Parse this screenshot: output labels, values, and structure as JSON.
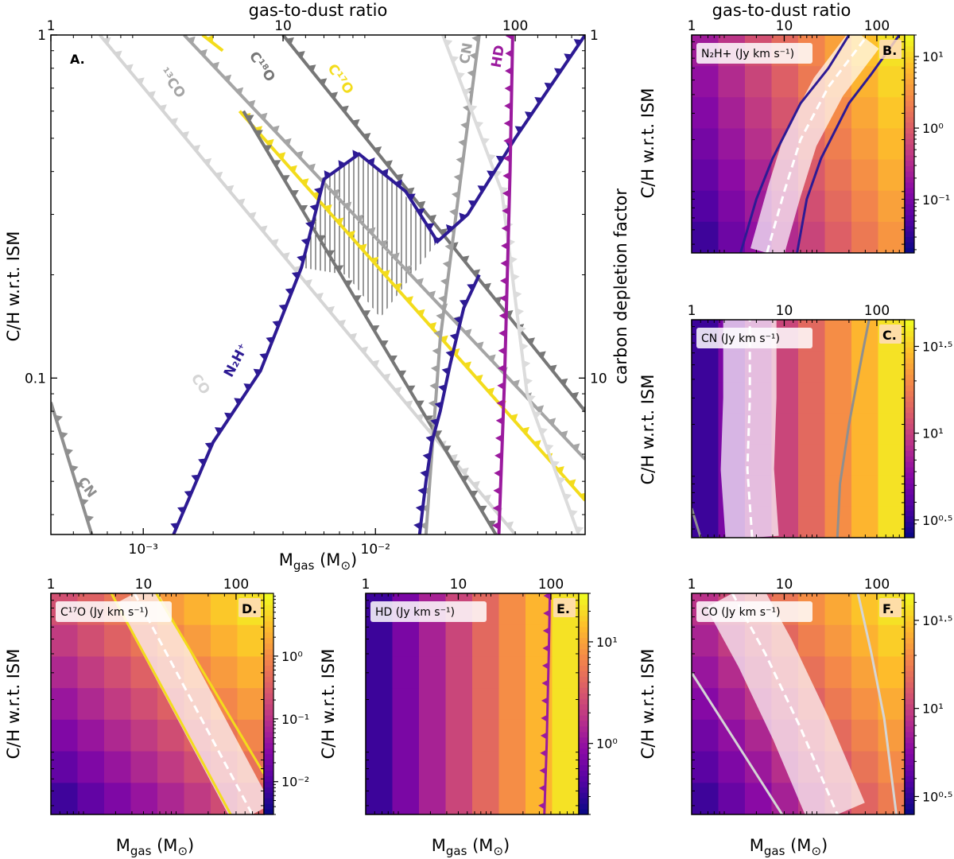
{
  "figure": {
    "top_axis_label": "gas-to-dust ratio",
    "bottom_axis_label": "Mgas (M⊙)",
    "left_axis_label": "C/H w.r.t. ISM",
    "right_axis_label": "carbon depletion factor"
  },
  "chart_data": [
    {
      "id": "A",
      "type": "line",
      "title": "A.",
      "xlabel": "Mgas (M⊙)",
      "ylabel": "C/H w.r.t. ISM",
      "top_xlabel": "gas-to-dust ratio",
      "right_ylabel": "carbon depletion factor",
      "xscale": "log",
      "yscale": "log",
      "xlim": [
        0.0004,
        0.08
      ],
      "ylim": [
        0.035,
        1.0
      ],
      "xticks": [
        {
          "v": 0.001,
          "label": "10⁻³"
        },
        {
          "v": 0.01,
          "label": "10⁻²"
        }
      ],
      "yticks": [
        {
          "v": 1,
          "label": "1"
        },
        {
          "v": 0.1,
          "label": "0.1"
        }
      ],
      "top_ticks": [
        {
          "v": 1,
          "label": "1"
        },
        {
          "v": 10,
          "label": "10"
        },
        {
          "v": 100,
          "label": "100"
        }
      ],
      "right_ticks": [
        {
          "v": 1,
          "label": "1"
        },
        {
          "v": 10,
          "label": "10"
        }
      ],
      "series": [
        {
          "name": "13CO",
          "label": "¹³CO",
          "color": "#a5a5a5",
          "points": [
            [
              0.0015,
              1.0
            ],
            [
              0.08,
              0.058
            ]
          ],
          "label_at": [
            0.00117,
            0.78
          ]
        },
        {
          "name": "CO",
          "label": "CO",
          "color": "#d5d5d5",
          "points": [
            [
              0.00065,
              1.0
            ],
            [
              0.04,
              0.035
            ]
          ],
          "label_at": [
            0.0016,
            0.1
          ]
        },
        {
          "name": "C18O",
          "label": "C¹⁸O",
          "color": "#777777",
          "points": [
            [
              0.004,
              1.0
            ],
            [
              0.08,
              0.08
            ]
          ],
          "label_at": [
            0.00285,
            0.87
          ]
        },
        {
          "name": "C17O",
          "label": "C¹⁷O",
          "color": "#f3dc1c",
          "points": [
            [
              0.0026,
              0.6
            ],
            [
              0.08,
              0.044
            ]
          ],
          "label_at": [
            0.0062,
            0.8
          ]
        },
        {
          "name": "C18O-upper",
          "label": "",
          "color": "#777777",
          "points": [
            [
              0.0027,
              0.6
            ],
            [
              0.033,
              0.035
            ]
          ]
        },
        {
          "name": "C17O-upper",
          "label": "",
          "color": "#f3dc1c",
          "points": [
            [
              0.0018,
              1.0
            ],
            [
              0.0022,
              0.9
            ]
          ]
        },
        {
          "name": "CN",
          "label": "CN",
          "color": "#8f8f8f",
          "points": [
            [
              0.0004,
              0.08
            ],
            [
              0.0004,
              0.085
            ],
            [
              0.0006,
              0.035
            ]
          ],
          "label_at": [
            0.00052,
            0.05
          ]
        },
        {
          "name": "CN-right",
          "label": "CN",
          "color": "#a0a0a0",
          "points": [
            [
              0.0165,
              0.035
            ],
            [
              0.019,
              0.13
            ],
            [
              0.0235,
              0.4
            ],
            [
              0.028,
              1.0
            ]
          ],
          "label_at": [
            0.0252,
            0.82
          ]
        },
        {
          "name": "CN-light",
          "label": "",
          "color": "#dcdcdc",
          "points": [
            [
              0.0195,
              1.0
            ],
            [
              0.035,
              0.35
            ],
            [
              0.045,
              0.09
            ],
            [
              0.075,
              0.035
            ]
          ]
        },
        {
          "name": "N2H+",
          "label": "N₂H⁺",
          "color": "#2d1a94",
          "points": [
            [
              0.00135,
              0.035
            ],
            [
              0.002,
              0.065
            ],
            [
              0.0032,
              0.105
            ],
            [
              0.0048,
              0.21
            ],
            [
              0.006,
              0.38
            ],
            [
              0.0085,
              0.45
            ],
            [
              0.0135,
              0.35
            ],
            [
              0.0185,
              0.25
            ],
            [
              0.025,
              0.3
            ],
            [
              0.04,
              0.5
            ],
            [
              0.08,
              1.0
            ]
          ],
          "label_at": [
            0.0024,
            0.1
          ]
        },
        {
          "name": "N2H+-lower",
          "label": "",
          "color": "#2d1a94",
          "points": [
            [
              0.0155,
              0.035
            ],
            [
              0.0165,
              0.05
            ],
            [
              0.0175,
              0.065
            ],
            [
              0.019,
              0.08
            ],
            [
              0.021,
              0.11
            ],
            [
              0.024,
              0.16
            ],
            [
              0.028,
              0.2
            ]
          ]
        },
        {
          "name": "HD",
          "label": "HD",
          "color": "#9b1a9e",
          "points": [
            [
              0.034,
              0.035
            ],
            [
              0.036,
              0.1
            ],
            [
              0.038,
              0.4
            ],
            [
              0.039,
              1.0
            ]
          ],
          "label_at": [
            0.0345,
            0.8
          ]
        }
      ]
    },
    {
      "id": "B",
      "type": "heatmap",
      "title": "B.",
      "legend": "N₂H+ (Jy km s⁻¹)",
      "xlabel": "Mgas (M⊙)",
      "ylabel": "C/H w.r.t. ISM",
      "top_xlabel": "gas-to-dust ratio",
      "xscale": "log",
      "yscale": "log",
      "xlim": [
        0.0004,
        0.08
      ],
      "ylim": [
        0.035,
        1.0
      ],
      "colorbar": {
        "scale": "log",
        "range": [
          0.018,
          20
        ],
        "ticks": [
          {
            "v": 10,
            "label": "10¹"
          },
          {
            "v": 1,
            "label": "10⁰"
          },
          {
            "v": 0.1,
            "label": "10⁻¹"
          }
        ]
      },
      "grid_size": [
        8,
        7
      ],
      "field": {
        "kind": "diag",
        "a": 1.0,
        "b": 0.35,
        "vmin_exp": -1.7,
        "vmax_exp": 1.3
      },
      "contours": [
        {
          "color": "#2d1a94",
          "points": [
            [
              0.00135,
              0.035
            ],
            [
              0.002,
              0.08
            ],
            [
              0.003,
              0.15
            ],
            [
              0.006,
              0.35
            ],
            [
              0.012,
              0.6
            ],
            [
              0.02,
              1.0
            ]
          ]
        },
        {
          "color": "#2d1a94",
          "points": [
            [
              0.0055,
              0.035
            ],
            [
              0.007,
              0.08
            ],
            [
              0.01,
              0.15
            ],
            [
              0.02,
              0.35
            ],
            [
              0.035,
              0.55
            ],
            [
              0.07,
              1.0
            ]
          ]
        }
      ],
      "band": {
        "center": [
          [
            0.0026,
            0.035
          ],
          [
            0.004,
            0.09
          ],
          [
            0.006,
            0.2
          ],
          [
            0.012,
            0.45
          ],
          [
            0.03,
            0.95
          ]
        ],
        "width": 0.16
      },
      "top_ticks": [
        {
          "v": 1,
          "label": "1"
        },
        {
          "v": 10,
          "label": "10"
        },
        {
          "v": 100,
          "label": "100"
        }
      ]
    },
    {
      "id": "C",
      "type": "heatmap",
      "title": "C.",
      "legend": "CN (Jy km s⁻¹)",
      "xlabel": "Mgas (M⊙)",
      "ylabel": "C/H w.r.t. ISM",
      "xscale": "log",
      "yscale": "log",
      "xlim": [
        0.0004,
        0.08
      ],
      "ylim": [
        0.035,
        1.0
      ],
      "colorbar": {
        "scale": "log",
        "range": [
          2.5,
          45
        ],
        "ticks": [
          {
            "v": 31.6,
            "label": "10¹·⁵"
          },
          {
            "v": 10,
            "label": "10¹"
          },
          {
            "v": 3.16,
            "label": "10⁰·⁵"
          }
        ]
      },
      "grid_size": [
        8,
        7
      ],
      "field": {
        "kind": "x",
        "a": 1.0,
        "b": 0.0,
        "vmin_exp": 0.4,
        "vmax_exp": 1.65
      },
      "contours": [
        {
          "color": "#8f8f8f",
          "points": [
            [
              0.015,
              0.035
            ],
            [
              0.016,
              0.08
            ],
            [
              0.02,
              0.2
            ],
            [
              0.028,
              0.6
            ],
            [
              0.033,
              1.0
            ]
          ]
        },
        {
          "color": "#8f8f8f",
          "points": [
            [
              0.0004,
              0.055
            ],
            [
              0.0005,
              0.035
            ]
          ]
        }
      ],
      "band": {
        "center": [
          [
            0.0018,
            0.035
          ],
          [
            0.0016,
            0.1
          ],
          [
            0.0017,
            0.3
          ],
          [
            0.0017,
            1.0
          ]
        ],
        "width": 0.25
      },
      "top_ticks": [
        {
          "v": 1,
          "label": "1"
        },
        {
          "v": 10,
          "label": "10"
        },
        {
          "v": 100,
          "label": "100"
        }
      ]
    },
    {
      "id": "D",
      "type": "heatmap",
      "title": "D.",
      "legend": "C¹⁷O (Jy km s⁻¹)",
      "xlabel": "Mgas (M⊙)",
      "ylabel": "C/H w.r.t. ISM",
      "xscale": "log",
      "yscale": "log",
      "xlim": [
        0.0004,
        0.08
      ],
      "ylim": [
        0.035,
        1.0
      ],
      "colorbar": {
        "scale": "log",
        "range": [
          0.003,
          10
        ],
        "ticks": [
          {
            "v": 1,
            "label": "10⁰"
          },
          {
            "v": 0.1,
            "label": "10⁻¹"
          },
          {
            "v": 0.01,
            "label": "10⁻²"
          }
        ]
      },
      "grid_size": [
        8,
        7
      ],
      "field": {
        "kind": "diag",
        "a": 1.0,
        "b": 0.9,
        "vmin_exp": -2.5,
        "vmax_exp": 1.0
      },
      "contours": [
        {
          "color": "#f3dc1c",
          "points": [
            [
              0.0018,
              1.0
            ],
            [
              0.035,
              0.035
            ]
          ]
        },
        {
          "color": "#f3dc1c",
          "points": [
            [
              0.0055,
              1.0
            ],
            [
              0.08,
              0.065
            ]
          ]
        }
      ],
      "band": {
        "center": [
          [
            0.0032,
            1.0
          ],
          [
            0.06,
            0.035
          ]
        ],
        "width": 0.2
      },
      "top_ticks": [
        {
          "v": 1,
          "label": "1"
        },
        {
          "v": 10,
          "label": "10"
        },
        {
          "v": 100,
          "label": "100"
        }
      ]
    },
    {
      "id": "E",
      "type": "heatmap",
      "title": "E.",
      "legend": "HD (Jy km s⁻¹)",
      "xlabel": "Mgas (M⊙)",
      "ylabel": "C/H w.r.t. ISM",
      "xscale": "log",
      "yscale": "log",
      "xlim": [
        0.0004,
        0.08
      ],
      "ylim": [
        0.035,
        1.0
      ],
      "colorbar": {
        "scale": "log",
        "range": [
          0.2,
          30
        ],
        "ticks": [
          {
            "v": 10,
            "label": "10¹"
          },
          {
            "v": 1,
            "label": "10⁰"
          }
        ]
      },
      "grid_size": [
        8,
        7
      ],
      "field": {
        "kind": "x",
        "a": 1.0,
        "b": 0.0,
        "vmin_exp": -0.7,
        "vmax_exp": 1.5
      },
      "contours": [
        {
          "color": "#9b1a9e",
          "points": [
            [
              0.034,
              0.035
            ],
            [
              0.036,
              0.1
            ],
            [
              0.038,
              0.4
            ],
            [
              0.039,
              1.0
            ]
          ],
          "barbed": true
        }
      ],
      "top_ticks": [
        {
          "v": 1,
          "label": "1"
        },
        {
          "v": 10,
          "label": "10"
        },
        {
          "v": 100,
          "label": "100"
        }
      ]
    },
    {
      "id": "F",
      "type": "heatmap",
      "title": "F.",
      "legend": "CO (Jy km s⁻¹)",
      "xlabel": "Mgas (M⊙)",
      "ylabel": "C/H w.r.t. ISM",
      "xscale": "log",
      "yscale": "log",
      "xlim": [
        0.0004,
        0.08
      ],
      "ylim": [
        0.035,
        1.0
      ],
      "colorbar": {
        "scale": "log",
        "range": [
          2.5,
          45
        ],
        "ticks": [
          {
            "v": 31.6,
            "label": "10¹·⁵"
          },
          {
            "v": 10,
            "label": "10¹"
          },
          {
            "v": 3.16,
            "label": "10⁰·⁵"
          }
        ]
      },
      "grid_size": [
        8,
        7
      ],
      "field": {
        "kind": "diag",
        "a": 1.0,
        "b": 0.55,
        "vmin_exp": 0.3,
        "vmax_exp": 1.7
      },
      "contours": [
        {
          "color": "#d5d5d5",
          "points": [
            [
              0.0004,
              0.3
            ],
            [
              0.0038,
              0.035
            ]
          ]
        },
        {
          "color": "#d5d5d5",
          "points": [
            [
              0.025,
              1.0
            ],
            [
              0.035,
              0.4
            ],
            [
              0.048,
              0.15
            ],
            [
              0.065,
              0.035
            ]
          ]
        }
      ],
      "band": {
        "center": [
          [
            0.0011,
            1.0
          ],
          [
            0.0025,
            0.4
          ],
          [
            0.006,
            0.13
          ],
          [
            0.015,
            0.035
          ]
        ],
        "width": 0.28
      },
      "top_ticks": [
        {
          "v": 1,
          "label": "1"
        },
        {
          "v": 10,
          "label": "10"
        },
        {
          "v": 100,
          "label": "100"
        }
      ]
    }
  ]
}
